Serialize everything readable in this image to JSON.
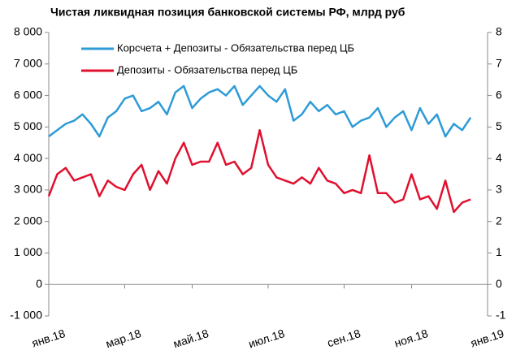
{
  "chart_data": {
    "type": "line",
    "title": "Чистая ликвидная позиция банковской системы РФ, млрд руб",
    "categories": [
      "янв.18",
      null,
      null,
      null,
      null,
      null,
      null,
      null,
      null,
      "мар.18",
      null,
      null,
      null,
      null,
      null,
      null,
      null,
      "май.18",
      null,
      null,
      null,
      null,
      null,
      null,
      null,
      null,
      "июл.18",
      null,
      null,
      null,
      null,
      null,
      null,
      null,
      null,
      "сен.18",
      null,
      null,
      null,
      null,
      null,
      null,
      null,
      "ноя.18",
      null,
      null,
      null,
      null,
      null,
      null,
      null,
      null,
      "янв.19"
    ],
    "series": [
      {
        "name": "Корсчета + Депозиты - Обязательства перед ЦБ",
        "color": "#2e9bd6",
        "values": [
          4700,
          4900,
          5100,
          5200,
          5400,
          5100,
          4700,
          5300,
          5500,
          5900,
          6000,
          5500,
          5600,
          5800,
          5400,
          6100,
          6300,
          5600,
          5900,
          6100,
          6200,
          6000,
          6300,
          5700,
          6000,
          6300,
          6000,
          5800,
          6200,
          5200,
          5400,
          5800,
          5500,
          5700,
          5400,
          5500,
          5000,
          5200,
          5300,
          5600,
          5000,
          5300,
          5500,
          4900,
          5600,
          5100,
          5400,
          4700,
          5100,
          4900,
          5300,
          null,
          null
        ]
      },
      {
        "name": "Депозиты - Обязательства перед ЦБ",
        "color": "#e0102f",
        "values": [
          2800,
          3500,
          3700,
          3300,
          3400,
          3500,
          2800,
          3300,
          3100,
          3000,
          3500,
          3800,
          3000,
          3600,
          3200,
          4000,
          4500,
          3800,
          3900,
          3900,
          4500,
          3800,
          3900,
          3500,
          3700,
          4900,
          3800,
          3400,
          3300,
          3200,
          3400,
          3200,
          3700,
          3300,
          3200,
          2900,
          3000,
          2900,
          4100,
          2900,
          2900,
          2600,
          2700,
          3500,
          2700,
          2800,
          2400,
          3300,
          2300,
          2600,
          2700,
          null,
          null
        ]
      }
    ],
    "ylim": [
      -1000,
      8000
    ],
    "yticks": [
      {
        "value": -1000,
        "label": "-1 000"
      },
      0,
      {
        "value": 1000,
        "label": "1 000"
      },
      {
        "value": 2000,
        "label": "2 000"
      },
      {
        "value": 3000,
        "label": "3 000"
      },
      {
        "value": 4000,
        "label": "4 000"
      },
      {
        "value": 5000,
        "label": "5 000"
      },
      {
        "value": 6000,
        "label": "6 000"
      },
      {
        "value": 7000,
        "label": "7 000"
      },
      {
        "value": 8000,
        "label": "8 000"
      }
    ],
    "y2lim": [
      -1,
      8
    ],
    "y2ticks": [
      -1,
      0,
      1,
      2,
      3,
      4,
      5,
      6,
      7,
      8
    ],
    "legend": "top-left"
  }
}
